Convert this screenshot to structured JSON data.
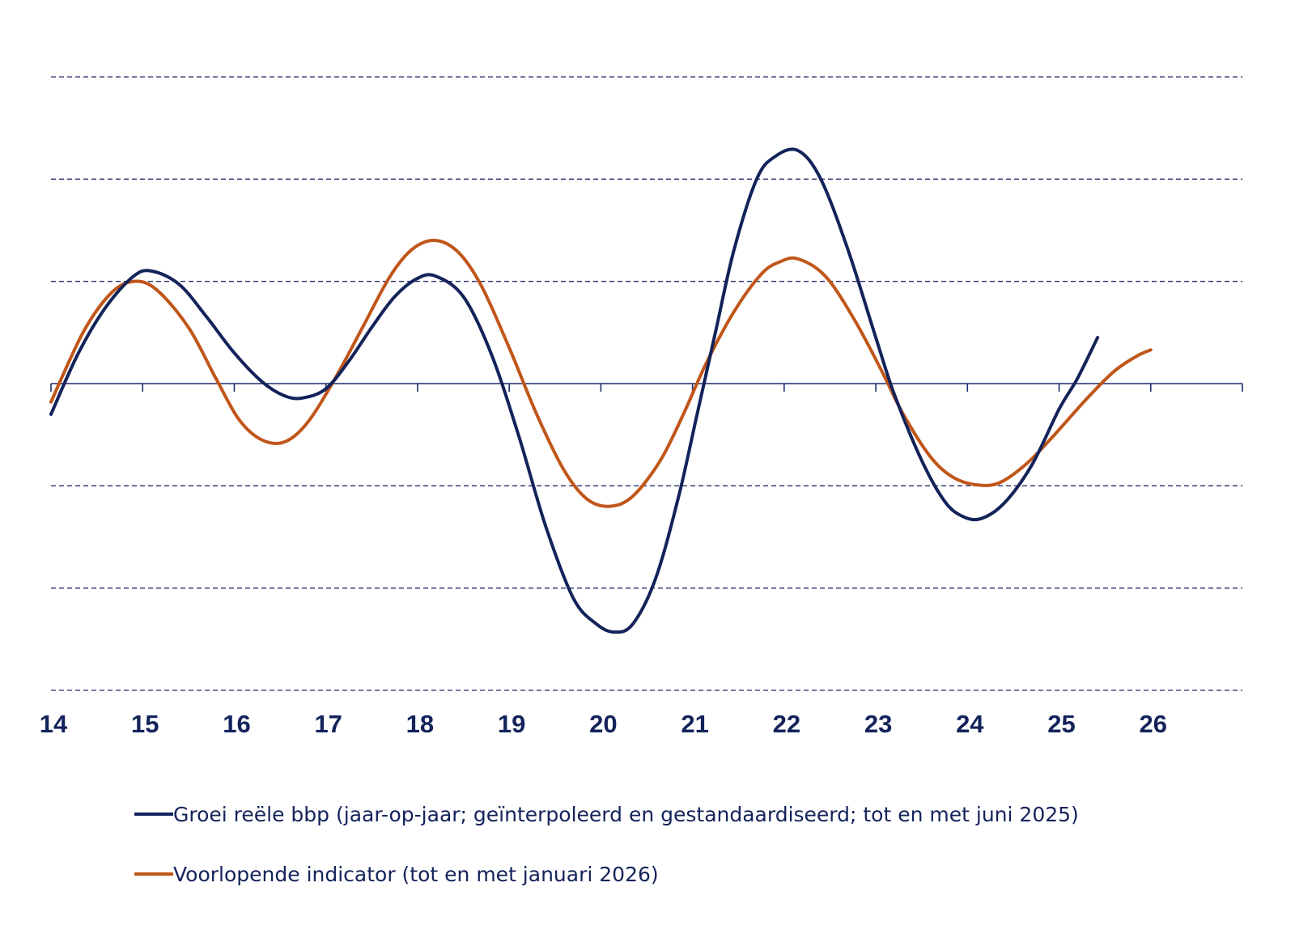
{
  "chart_data": {
    "type": "line",
    "title": "",
    "xlabel": "",
    "ylabel": "",
    "x_ticks": [
      "14",
      "15",
      "16",
      "17",
      "18",
      "19",
      "20",
      "21",
      "22",
      "23",
      "24",
      "25",
      "26"
    ],
    "xlim": [
      14,
      27
    ],
    "ylim": [
      -3,
      3
    ],
    "y_grid_levels": [
      -3,
      -2,
      -1,
      1,
      2,
      3
    ],
    "grid": "horizontal-dashed",
    "legend_position": "bottom",
    "colors": {
      "axis": "#1f2d6b",
      "grid": "#1f2d6b",
      "text": "#13235a"
    },
    "series": [
      {
        "name": "Groei reële bbp (jaar-op-jaar; geïnterpoleerd en gestandaardiseerd; tot en met juni 2025)",
        "color": "#13235a",
        "points": [
          [
            14.0,
            -0.3
          ],
          [
            14.3,
            0.3
          ],
          [
            14.6,
            0.75
          ],
          [
            14.9,
            1.05
          ],
          [
            15.1,
            1.1
          ],
          [
            15.4,
            0.97
          ],
          [
            15.7,
            0.65
          ],
          [
            16.0,
            0.3
          ],
          [
            16.3,
            0.02
          ],
          [
            16.55,
            -0.12
          ],
          [
            16.75,
            -0.14
          ],
          [
            17.0,
            -0.05
          ],
          [
            17.25,
            0.22
          ],
          [
            17.5,
            0.55
          ],
          [
            17.75,
            0.85
          ],
          [
            18.0,
            1.03
          ],
          [
            18.2,
            1.05
          ],
          [
            18.5,
            0.85
          ],
          [
            18.8,
            0.3
          ],
          [
            19.1,
            -0.5
          ],
          [
            19.4,
            -1.4
          ],
          [
            19.7,
            -2.1
          ],
          [
            19.95,
            -2.35
          ],
          [
            20.15,
            -2.43
          ],
          [
            20.35,
            -2.35
          ],
          [
            20.6,
            -1.9
          ],
          [
            20.85,
            -1.1
          ],
          [
            21.05,
            -0.3
          ],
          [
            21.25,
            0.5
          ],
          [
            21.45,
            1.3
          ],
          [
            21.7,
            2.0
          ],
          [
            21.9,
            2.22
          ],
          [
            22.15,
            2.28
          ],
          [
            22.4,
            2.0
          ],
          [
            22.7,
            1.3
          ],
          [
            23.0,
            0.45
          ],
          [
            23.2,
            -0.1
          ],
          [
            23.5,
            -0.75
          ],
          [
            23.75,
            -1.15
          ],
          [
            23.95,
            -1.3
          ],
          [
            24.15,
            -1.32
          ],
          [
            24.4,
            -1.17
          ],
          [
            24.7,
            -0.8
          ],
          [
            25.0,
            -0.25
          ],
          [
            25.2,
            0.05
          ],
          [
            25.42,
            0.45
          ]
        ]
      },
      {
        "name": "Voorlopende indicator (tot en met januari 2026)",
        "color": "#c0561a",
        "points": [
          [
            14.0,
            -0.18
          ],
          [
            14.35,
            0.5
          ],
          [
            14.65,
            0.88
          ],
          [
            14.9,
            1.0
          ],
          [
            15.15,
            0.92
          ],
          [
            15.5,
            0.55
          ],
          [
            15.8,
            0.05
          ],
          [
            16.05,
            -0.35
          ],
          [
            16.3,
            -0.55
          ],
          [
            16.55,
            -0.57
          ],
          [
            16.8,
            -0.38
          ],
          [
            17.1,
            0.05
          ],
          [
            17.4,
            0.55
          ],
          [
            17.7,
            1.05
          ],
          [
            17.95,
            1.32
          ],
          [
            18.2,
            1.4
          ],
          [
            18.45,
            1.28
          ],
          [
            18.7,
            0.95
          ],
          [
            19.0,
            0.35
          ],
          [
            19.3,
            -0.3
          ],
          [
            19.6,
            -0.85
          ],
          [
            19.85,
            -1.13
          ],
          [
            20.1,
            -1.2
          ],
          [
            20.35,
            -1.1
          ],
          [
            20.65,
            -0.75
          ],
          [
            20.9,
            -0.3
          ],
          [
            21.15,
            0.2
          ],
          [
            21.45,
            0.7
          ],
          [
            21.75,
            1.07
          ],
          [
            21.95,
            1.19
          ],
          [
            22.15,
            1.22
          ],
          [
            22.45,
            1.05
          ],
          [
            22.75,
            0.65
          ],
          [
            23.05,
            0.15
          ],
          [
            23.3,
            -0.3
          ],
          [
            23.6,
            -0.72
          ],
          [
            23.85,
            -0.92
          ],
          [
            24.1,
            -0.99
          ],
          [
            24.35,
            -0.97
          ],
          [
            24.65,
            -0.78
          ],
          [
            24.95,
            -0.5
          ],
          [
            25.3,
            -0.15
          ],
          [
            25.6,
            0.12
          ],
          [
            25.85,
            0.27
          ],
          [
            26.0,
            0.33
          ]
        ]
      }
    ]
  }
}
